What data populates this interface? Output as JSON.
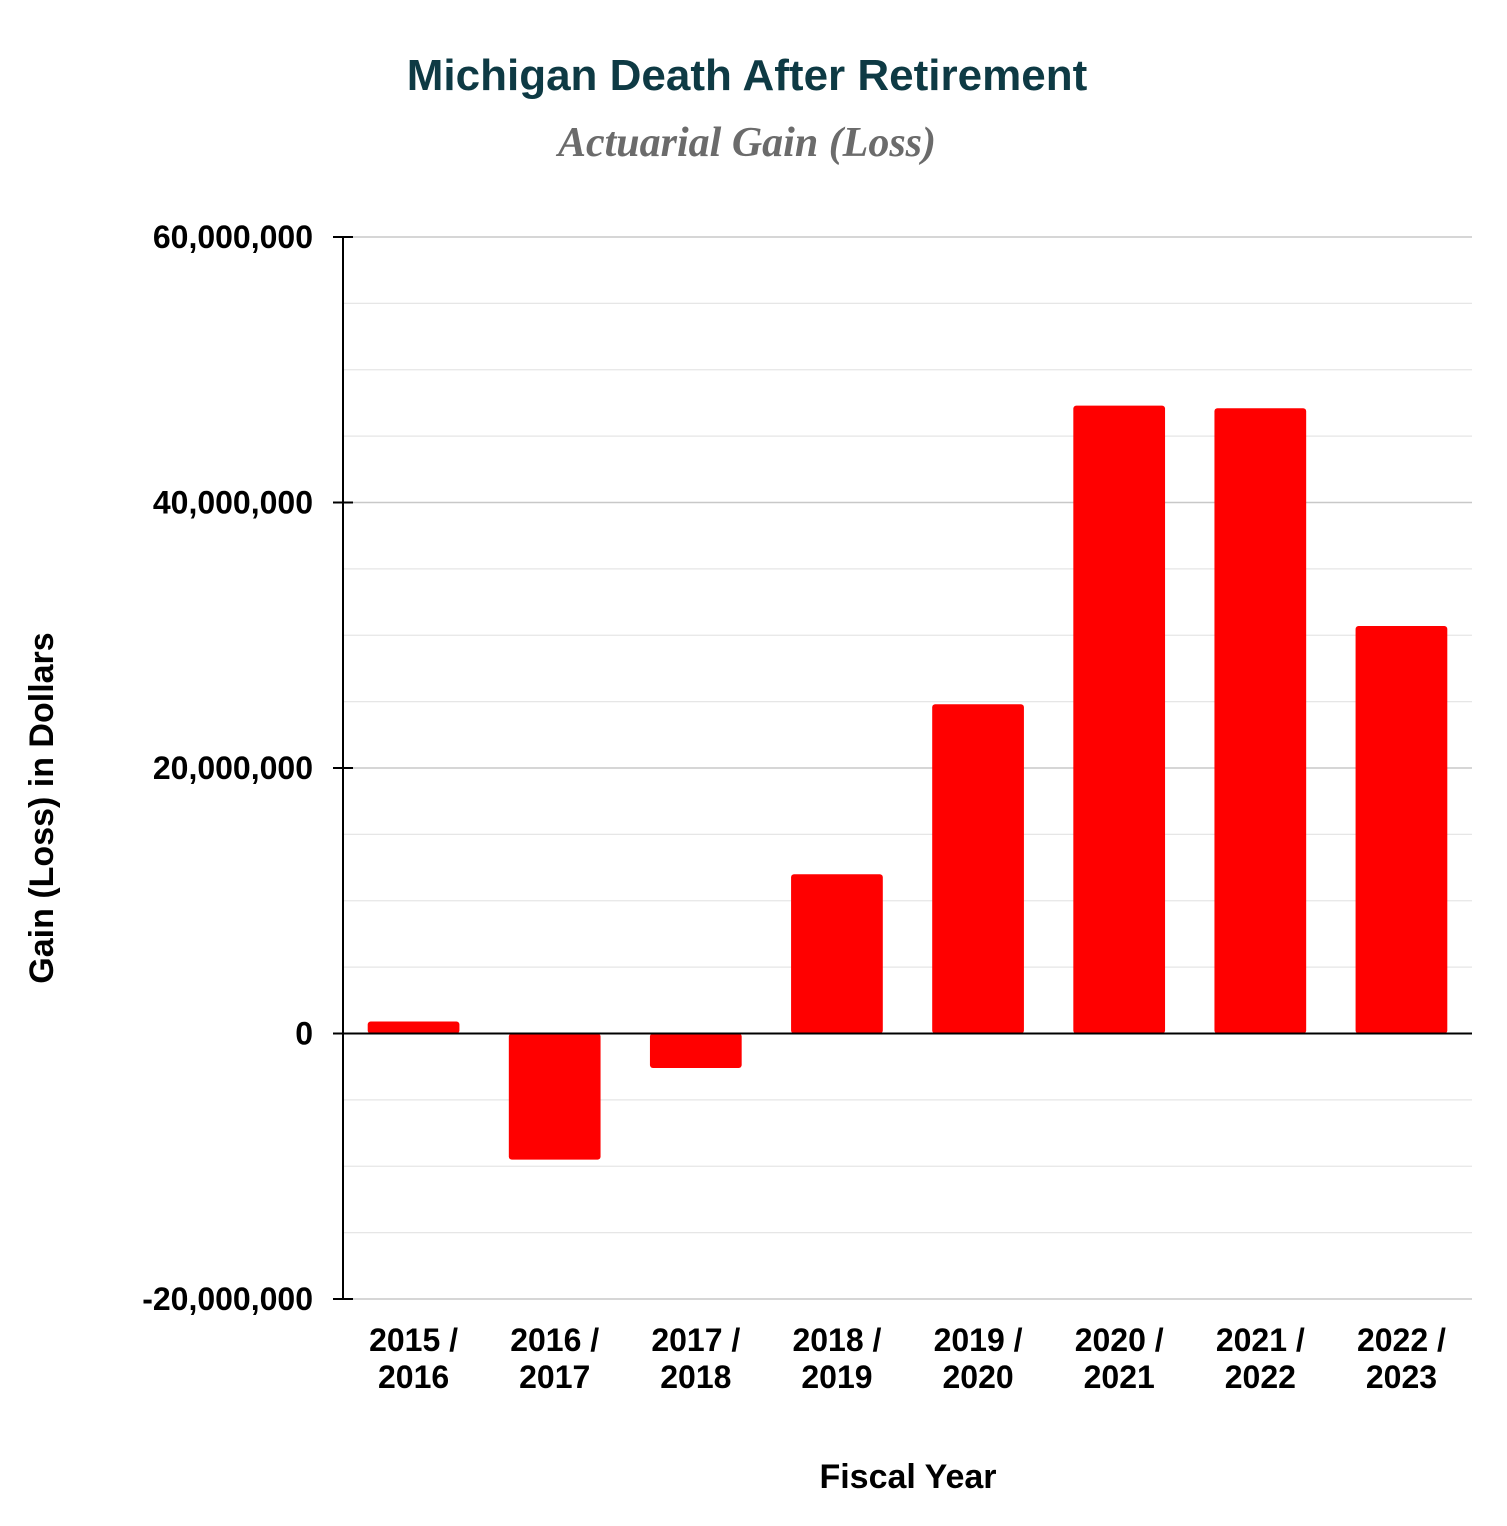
{
  "chart_data": {
    "type": "bar",
    "title": "Michigan Death After Retirement",
    "subtitle": "Actuarial Gain (Loss)",
    "xlabel": "Fiscal Year",
    "ylabel": "Gain (Loss) in Dollars",
    "categories": [
      [
        "2015 /",
        "2016"
      ],
      [
        "2016 /",
        "2017"
      ],
      [
        "2017 /",
        "2018"
      ],
      [
        "2018 /",
        "2019"
      ],
      [
        "2019 /",
        "2020"
      ],
      [
        "2020 /",
        "2021"
      ],
      [
        "2021 /",
        "2022"
      ],
      [
        "2022 /",
        "2023"
      ]
    ],
    "values": [
      900000,
      -9500000,
      -2600000,
      12000000,
      24800000,
      47300000,
      47100000,
      30700000
    ],
    "ylim": [
      -20000000,
      60000000
    ],
    "yticks": [
      -20000000,
      0,
      20000000,
      40000000,
      60000000
    ],
    "ytick_labels": [
      "-20,000,000",
      "0",
      "20,000,000",
      "40,000,000",
      "60,000,000"
    ],
    "minor_step": 5000000,
    "grid": true,
    "legend": "none",
    "colors": {
      "bar": "#ff0000",
      "title": "#0e3a44",
      "subtitle": "#6b6b6b",
      "grid": "#d9d9d9",
      "axis": "#000000"
    }
  }
}
